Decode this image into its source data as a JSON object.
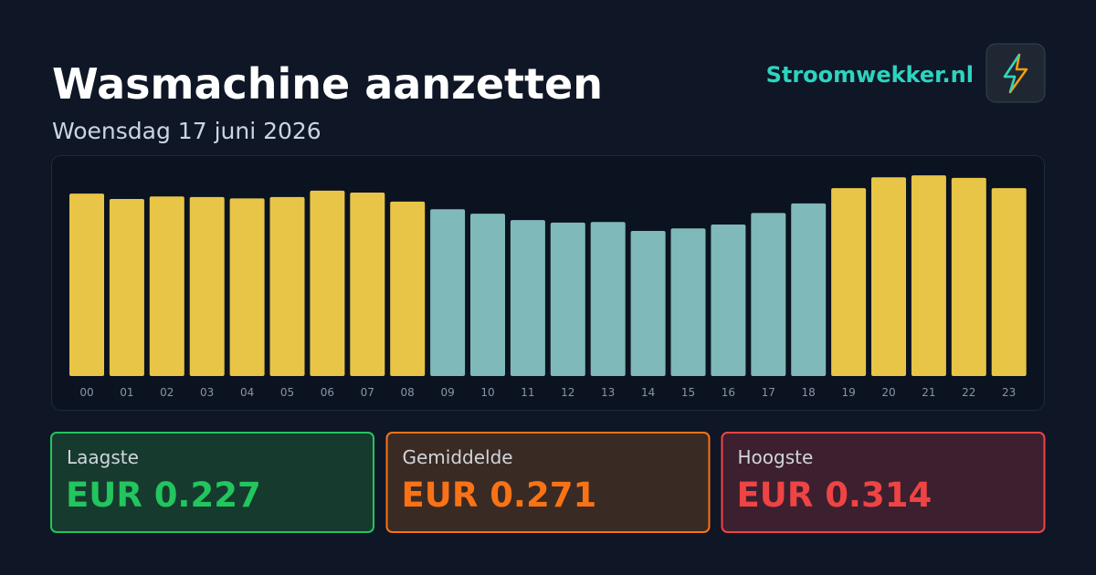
{
  "header": {
    "title": "Wasmachine aanzetten",
    "subtitle": "Woensdag 17 juni 2026",
    "brand": "Stroomwekker.nl"
  },
  "chart_data": {
    "type": "bar",
    "categories": [
      "00",
      "01",
      "02",
      "03",
      "04",
      "05",
      "06",
      "07",
      "08",
      "09",
      "10",
      "11",
      "12",
      "13",
      "14",
      "15",
      "16",
      "17",
      "18",
      "19",
      "20",
      "21",
      "22",
      "23"
    ],
    "values": [
      0.2855,
      0.277,
      0.281,
      0.28,
      0.278,
      0.28,
      0.29,
      0.287,
      0.273,
      0.261,
      0.254,
      0.244,
      0.24,
      0.241,
      0.227,
      0.231,
      0.237,
      0.255,
      0.27,
      0.294,
      0.311,
      0.314,
      0.31,
      0.294
    ],
    "colors": [
      "#e8c547",
      "#e8c547",
      "#e8c547",
      "#e8c547",
      "#e8c547",
      "#e8c547",
      "#e8c547",
      "#e8c547",
      "#e8c547",
      "#7fb9b9",
      "#7fb9b9",
      "#7fb9b9",
      "#7fb9b9",
      "#7fb9b9",
      "#7fb9b9",
      "#7fb9b9",
      "#7fb9b9",
      "#7fb9b9",
      "#7fb9b9",
      "#e8c547",
      "#e8c547",
      "#e8c547",
      "#e8c547",
      "#e8c547"
    ],
    "ylim": [
      0,
      0.327
    ]
  },
  "stats": [
    {
      "label": "Laagste",
      "value": "EUR 0.227"
    },
    {
      "label": "Gemiddelde",
      "value": "EUR 0.271"
    },
    {
      "label": "Hoogste",
      "value": "EUR 0.314"
    }
  ]
}
